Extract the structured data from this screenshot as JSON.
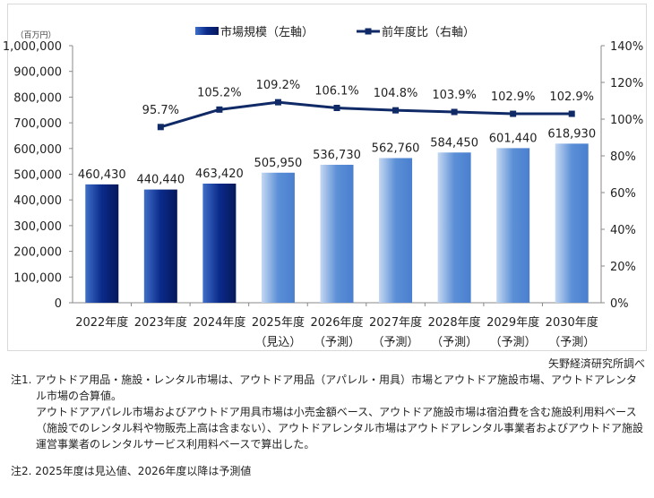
{
  "chart_data": {
    "type": "bar+line",
    "unit_label": "（百万円）",
    "categories": [
      [
        "2022年度",
        ""
      ],
      [
        "2023年度",
        ""
      ],
      [
        "2024年度",
        ""
      ],
      [
        "2025年度",
        "（見込）"
      ],
      [
        "2026年度",
        "（予測）"
      ],
      [
        "2027年度",
        "（予測）"
      ],
      [
        "2028年度",
        "（予測）"
      ],
      [
        "2029年度",
        "（予測）"
      ],
      [
        "2030年度",
        "（予測）"
      ]
    ],
    "series": [
      {
        "name": "市場規模（左軸）",
        "type": "bar",
        "axis": "left",
        "values": [
          460430,
          440440,
          463420,
          505950,
          536730,
          562760,
          584450,
          601440,
          618930
        ],
        "labels": [
          "460,430",
          "440,440",
          "463,420",
          "505,950",
          "536,730",
          "562,760",
          "584,450",
          "601,440",
          "618,930"
        ],
        "colors": {
          "actual": "#0a2a8a",
          "forecast": "#5b8fd6"
        }
      },
      {
        "name": "前年度比（右軸）",
        "type": "line",
        "axis": "right",
        "values": [
          null,
          95.7,
          105.2,
          109.2,
          106.1,
          104.8,
          103.9,
          102.9,
          102.9
        ],
        "labels": [
          "",
          "95.7%",
          "105.2%",
          "109.2%",
          "106.1%",
          "104.8%",
          "103.9%",
          "102.9%",
          "102.9%"
        ],
        "color": "#0f2a66"
      }
    ],
    "left_axis": {
      "ylim": [
        0,
        1000000
      ],
      "ticks": [
        "0",
        "100,000",
        "200,000",
        "300,000",
        "400,000",
        "500,000",
        "600,000",
        "700,000",
        "800,000",
        "900,000",
        "1,000,000"
      ]
    },
    "right_axis": {
      "ylim": [
        0,
        140
      ],
      "ticks": [
        "0%",
        "20%",
        "40%",
        "60%",
        "80%",
        "100%",
        "120%",
        "140%"
      ]
    },
    "grid": false,
    "legend": "top"
  },
  "source": "矢野経済研究所調べ",
  "notes": {
    "n1_head": "注1. アウトドア用品・施設・レンタル市場は、アウトドア用品（アパレル・用具）市場とアウトドア施設市場、アウトドアレンタル市場の合算値。",
    "n1_body": "アウトドアアパレル市場およびアウトドア用具市場は小売金額ベース、アウトドア施設市場は宿泊費を含む施設利用料ベース（施設でのレンタル料や物販売上高は含まない）、アウトドアレンタル市場はアウトドアレンタル事業者およびアウトドア施設運営事業者のレンタルサービス利用料ベースで算出した。",
    "n2": "注2. 2025年度は見込値、2026年度以降は予測値"
  }
}
